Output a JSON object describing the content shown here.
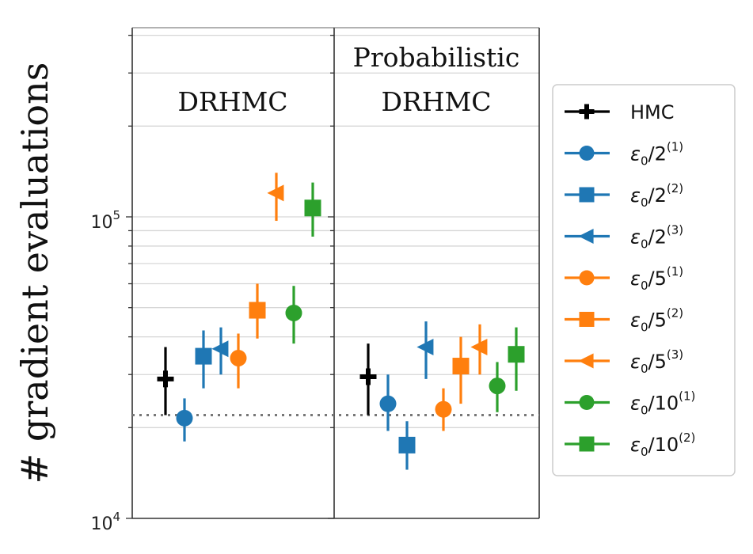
{
  "chart_data": {
    "type": "scatter",
    "subtype": "errorbar",
    "ylabel": "# gradient evaluations",
    "yscale": "log",
    "ylim": [
      10000,
      450000
    ],
    "yticks": [
      {
        "value": 10000,
        "base": "10",
        "exp": "4"
      },
      {
        "value": 100000,
        "base": "10",
        "exp": "5"
      }
    ],
    "grid": true,
    "reference_line": {
      "value": 22000,
      "style": "dotted"
    },
    "legend_position": "right",
    "panels": [
      {
        "title_lines": [
          "DRHMC"
        ],
        "points": [
          {
            "series": 0,
            "y": 29000,
            "lo": 22000,
            "hi": 37000
          },
          {
            "series": 1,
            "y": 21500,
            "lo": 18000,
            "hi": 25000
          },
          {
            "series": 2,
            "y": 34500,
            "lo": 27000,
            "hi": 42000
          },
          {
            "series": 3,
            "y": 36500,
            "lo": 30000,
            "hi": 43000
          },
          {
            "series": 4,
            "y": 34000,
            "lo": 27000,
            "hi": 41000
          },
          {
            "series": 5,
            "y": 49000,
            "lo": 39500,
            "hi": 60000
          },
          {
            "series": 6,
            "y": 120000,
            "lo": 97000,
            "hi": 140000
          },
          {
            "series": 7,
            "y": 48000,
            "lo": 38000,
            "hi": 59000
          },
          {
            "series": 8,
            "y": 107000,
            "lo": 86000,
            "hi": 130000
          }
        ]
      },
      {
        "title_lines": [
          "Probabilistic",
          "DRHMC"
        ],
        "points": [
          {
            "series": 0,
            "y": 29500,
            "lo": 22000,
            "hi": 38000
          },
          {
            "series": 1,
            "y": 24000,
            "lo": 19500,
            "hi": 30000
          },
          {
            "series": 2,
            "y": 17500,
            "lo": 14500,
            "hi": 21000
          },
          {
            "series": 3,
            "y": 37000,
            "lo": 29000,
            "hi": 45000
          },
          {
            "series": 4,
            "y": 23000,
            "lo": 19500,
            "hi": 27000
          },
          {
            "series": 5,
            "y": 32000,
            "lo": 24000,
            "hi": 40000
          },
          {
            "series": 6,
            "y": 37000,
            "lo": 30000,
            "hi": 44000
          },
          {
            "series": 7,
            "y": 27500,
            "lo": 22500,
            "hi": 33000
          },
          {
            "series": 8,
            "y": 35000,
            "lo": 26500,
            "hi": 43000
          }
        ]
      }
    ],
    "series": [
      {
        "name": "HMC",
        "label_base": "HMC",
        "label_sup": "",
        "marker": "plus",
        "color": "#000000"
      },
      {
        "name": "ε0/2(1)",
        "label_base": "ε0/2",
        "label_sup": "(1)",
        "marker": "circle",
        "color": "#1f77b4"
      },
      {
        "name": "ε0/2(2)",
        "label_base": "ε0/2",
        "label_sup": "(2)",
        "marker": "square",
        "color": "#1f77b4"
      },
      {
        "name": "ε0/2(3)",
        "label_base": "ε0/2",
        "label_sup": "(3)",
        "marker": "triangle-left",
        "color": "#1f77b4"
      },
      {
        "name": "ε0/5(1)",
        "label_base": "ε0/5",
        "label_sup": "(1)",
        "marker": "circle",
        "color": "#ff7f0e"
      },
      {
        "name": "ε0/5(2)",
        "label_base": "ε0/5",
        "label_sup": "(2)",
        "marker": "square",
        "color": "#ff7f0e"
      },
      {
        "name": "ε0/5(3)",
        "label_base": "ε0/5",
        "label_sup": "(3)",
        "marker": "triangle-left",
        "color": "#ff7f0e"
      },
      {
        "name": "ε0/10(1)",
        "label_base": "ε0/10",
        "label_sup": "(1)",
        "marker": "circle",
        "color": "#2ca02c"
      },
      {
        "name": "ε0/10(2)",
        "label_base": "ε0/10",
        "label_sup": "(2)",
        "marker": "square",
        "color": "#2ca02c"
      }
    ]
  }
}
